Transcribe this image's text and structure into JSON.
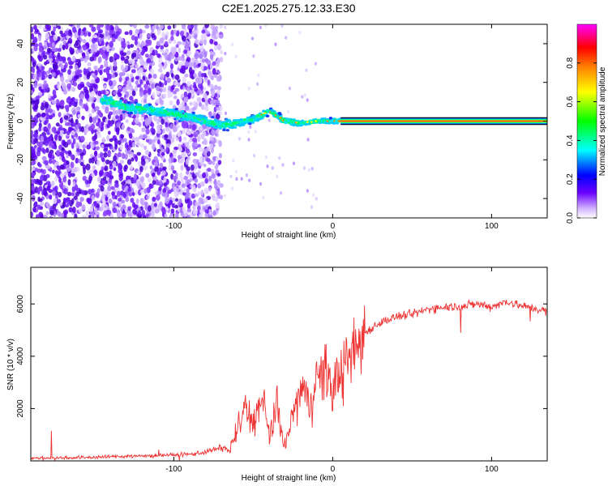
{
  "title": "C2E1.2025.275.12.33.E30",
  "chart_data": [
    {
      "type": "heatmap",
      "name": "spectrogram",
      "xlabel": "Height of straight line (km)",
      "ylabel": "Frequency (Hz)",
      "xlim": [
        -190,
        135
      ],
      "ylim": [
        -50,
        50
      ],
      "x_ticks": [
        -100,
        0,
        100
      ],
      "x_tick_labels": [
        "-100",
        "0",
        "100"
      ],
      "y_ticks": [
        -40,
        -20,
        0,
        20,
        40
      ],
      "y_tick_labels": [
        "-40",
        "-20",
        "0",
        "20",
        "40"
      ],
      "colorbar": {
        "label": "Normalized spectral amplitude",
        "range": [
          0,
          1
        ],
        "ticks": [
          0.0,
          0.2,
          0.4,
          0.6,
          0.8
        ],
        "tick_labels": [
          "0.0",
          "0.2",
          "0.4",
          "0.6",
          "0.8"
        ],
        "colors": [
          "#ffffff",
          "#d0b0ff",
          "#6a00ff",
          "#0000ff",
          "#00ffff",
          "#00ff00",
          "#ffff00",
          "#ff8000",
          "#ff0000",
          "#ff00ff"
        ]
      },
      "ridge": {
        "description_points_x": [
          -143,
          -130,
          -115,
          -100,
          -85,
          -70,
          -60,
          -50,
          -40,
          -35,
          -30,
          -20,
          -10,
          0,
          10,
          50,
          100,
          135
        ],
        "description_points_y": [
          11,
          7,
          6,
          4,
          1,
          -2,
          -1,
          1,
          5,
          3,
          0,
          -1,
          0,
          0,
          0,
          0,
          0,
          0
        ]
      }
    },
    {
      "type": "line",
      "name": "snr",
      "xlabel": "Height of straight line (km)",
      "ylabel": "SNR (10 * v/v)",
      "xlim": [
        -190,
        135
      ],
      "ylim": [
        0,
        7400
      ],
      "x_ticks": [
        -100,
        0,
        100
      ],
      "x_tick_labels": [
        "-100",
        "0",
        "100"
      ],
      "y_ticks": [
        2000,
        4000,
        6000
      ],
      "y_tick_labels": [
        "2000",
        "4000",
        "6000"
      ],
      "color": "#ee3333",
      "series": [
        {
          "name": "SNR",
          "x": [
            -190,
            -170,
            -150,
            -130,
            -110,
            -90,
            -80,
            -70,
            -65,
            -60,
            -55,
            -50,
            -45,
            -40,
            -35,
            -30,
            -25,
            -20,
            -15,
            -10,
            -5,
            0,
            5,
            10,
            15,
            20,
            30,
            40,
            50,
            60,
            70,
            80,
            90,
            100,
            105,
            110,
            115,
            120,
            130,
            135
          ],
          "values": [
            100,
            120,
            140,
            180,
            200,
            250,
            350,
            500,
            400,
            1200,
            2000,
            1500,
            2300,
            1000,
            2000,
            500,
            1800,
            2700,
            2200,
            3000,
            3500,
            2700,
            3500,
            3600,
            4300,
            4900,
            5300,
            5500,
            5600,
            5800,
            5900,
            5900,
            6000,
            5900,
            6000,
            6100,
            6000,
            5900,
            5800,
            5700
          ]
        }
      ]
    }
  ]
}
